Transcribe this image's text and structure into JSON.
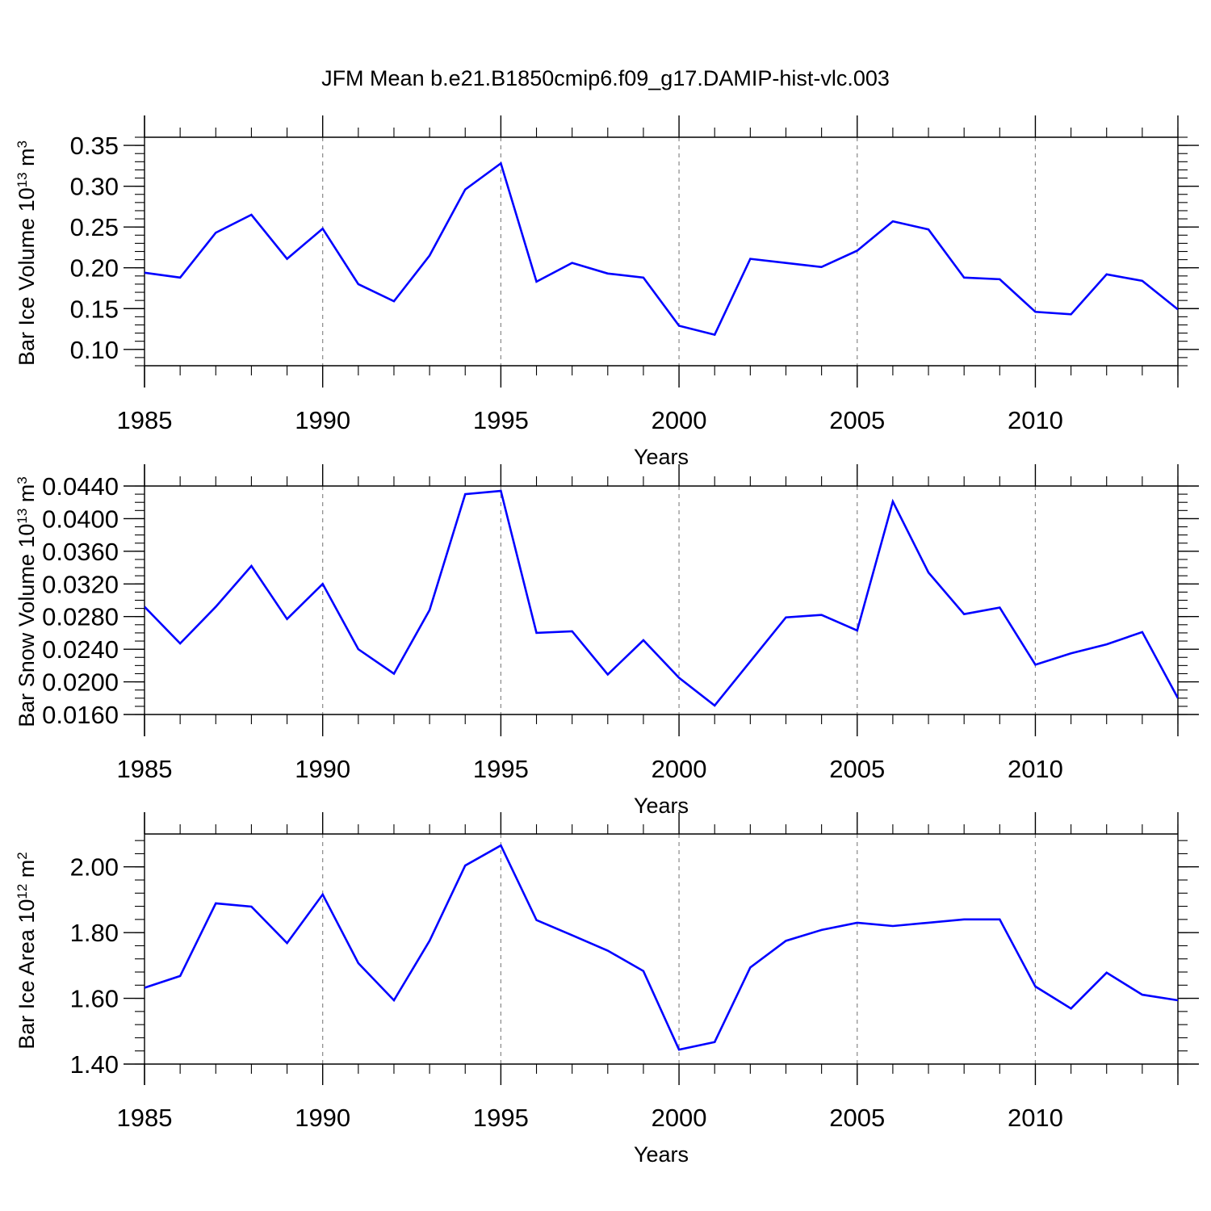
{
  "figure": {
    "title": "JFM Mean b.e21.B1850cmip6.f09_g17.DAMIP-hist-vlc.003"
  },
  "colors": {
    "line": "#0000ff",
    "axis": "#000000",
    "grid": "#888888",
    "background": "#ffffff"
  },
  "chart_data": [
    {
      "type": "line",
      "title": "",
      "xlabel": "Years",
      "ylabel": "Bar Ice Volume 10",
      "ylabel_sup": "13",
      "ylabel_unit": " m",
      "ylabel_unit_sup": "3",
      "xlim": [
        1985,
        2014
      ],
      "ylim": [
        0.08,
        0.36
      ],
      "xticks": [
        1985,
        1990,
        1995,
        2000,
        2005,
        2010
      ],
      "xtick_labels": [
        "1985",
        "1990",
        "1995",
        "2000",
        "2005",
        "2010"
      ],
      "yticks": [
        0.1,
        0.15,
        0.2,
        0.25,
        0.3,
        0.35
      ],
      "ytick_labels": [
        "0.10",
        "0.15",
        "0.20",
        "0.25",
        "0.30",
        "0.35"
      ],
      "yminor_step": 0.01,
      "grid": "vertical dashed at major x ticks",
      "x": [
        1985,
        1986,
        1987,
        1988,
        1989,
        1990,
        1991,
        1992,
        1993,
        1994,
        1995,
        1996,
        1997,
        1998,
        1999,
        2000,
        2001,
        2002,
        2003,
        2004,
        2005,
        2006,
        2007,
        2008,
        2009,
        2010,
        2011,
        2012,
        2013,
        2014
      ],
      "series": [
        {
          "name": "Bar Ice Volume",
          "values": [
            0.194,
            0.188,
            0.243,
            0.265,
            0.211,
            0.248,
            0.18,
            0.159,
            0.215,
            0.296,
            0.328,
            0.183,
            0.206,
            0.193,
            0.188,
            0.129,
            0.118,
            0.211,
            0.206,
            0.201,
            0.221,
            0.257,
            0.247,
            0.188,
            0.186,
            0.146,
            0.143,
            0.192,
            0.184,
            0.149
          ]
        }
      ]
    },
    {
      "type": "line",
      "title": "",
      "xlabel": "Years",
      "ylabel": "Bar Snow Volume 10",
      "ylabel_sup": "13",
      "ylabel_unit": " m",
      "ylabel_unit_sup": "3",
      "xlim": [
        1985,
        2014
      ],
      "ylim": [
        0.016,
        0.044
      ],
      "xticks": [
        1985,
        1990,
        1995,
        2000,
        2005,
        2010
      ],
      "xtick_labels": [
        "1985",
        "1990",
        "1995",
        "2000",
        "2005",
        "2010"
      ],
      "yticks": [
        0.016,
        0.02,
        0.024,
        0.028,
        0.032,
        0.036,
        0.04,
        0.044
      ],
      "ytick_labels": [
        "0.0160",
        "0.0200",
        "0.0240",
        "0.0280",
        "0.0320",
        "0.0360",
        "0.0400",
        "0.0440"
      ],
      "yminor_step": 0.001,
      "grid": "vertical dashed at major x ticks",
      "x": [
        1985,
        1986,
        1987,
        1988,
        1989,
        1990,
        1991,
        1992,
        1993,
        1994,
        1995,
        1996,
        1997,
        1998,
        1999,
        2000,
        2001,
        2002,
        2003,
        2004,
        2005,
        2006,
        2007,
        2008,
        2009,
        2010,
        2011,
        2012,
        2013,
        2014
      ],
      "series": [
        {
          "name": "Bar Snow Volume",
          "values": [
            0.0292,
            0.0247,
            0.0292,
            0.0342,
            0.0277,
            0.032,
            0.024,
            0.021,
            0.0288,
            0.043,
            0.0434,
            0.026,
            0.0262,
            0.0209,
            0.0251,
            0.0205,
            0.0171,
            0.0225,
            0.0279,
            0.0282,
            0.0263,
            0.0421,
            0.0334,
            0.0283,
            0.0291,
            0.0221,
            0.0235,
            0.0246,
            0.0261,
            0.018
          ]
        }
      ]
    },
    {
      "type": "line",
      "title": "",
      "xlabel": "Years",
      "ylabel": "Bar Ice Area 10",
      "ylabel_sup": "12",
      "ylabel_unit": " m",
      "ylabel_unit_sup": "2",
      "xlim": [
        1985,
        2014
      ],
      "ylim": [
        1.4,
        2.1
      ],
      "xticks": [
        1985,
        1990,
        1995,
        2000,
        2005,
        2010
      ],
      "xtick_labels": [
        "1985",
        "1990",
        "1995",
        "2000",
        "2005",
        "2010"
      ],
      "yticks": [
        1.4,
        1.6,
        1.8,
        2.0
      ],
      "ytick_labels": [
        "1.40",
        "1.60",
        "1.80",
        "2.00"
      ],
      "yminor_step": 0.04,
      "grid": "vertical dashed at major x ticks",
      "x": [
        1985,
        1986,
        1987,
        1988,
        1989,
        1990,
        1991,
        1992,
        1993,
        1994,
        1995,
        1996,
        1997,
        1998,
        1999,
        2000,
        2001,
        2002,
        2003,
        2004,
        2005,
        2006,
        2007,
        2008,
        2009,
        2010,
        2011,
        2012,
        2013,
        2014
      ],
      "series": [
        {
          "name": "Bar Ice Area",
          "values": [
            1.632,
            1.668,
            1.889,
            1.879,
            1.768,
            1.916,
            1.707,
            1.594,
            1.775,
            2.004,
            2.065,
            1.838,
            1.792,
            1.745,
            1.683,
            1.444,
            1.467,
            1.694,
            1.775,
            1.808,
            1.83,
            1.82,
            1.83,
            1.84,
            1.84,
            1.636,
            1.569,
            1.678,
            1.611,
            1.594
          ]
        }
      ]
    }
  ]
}
